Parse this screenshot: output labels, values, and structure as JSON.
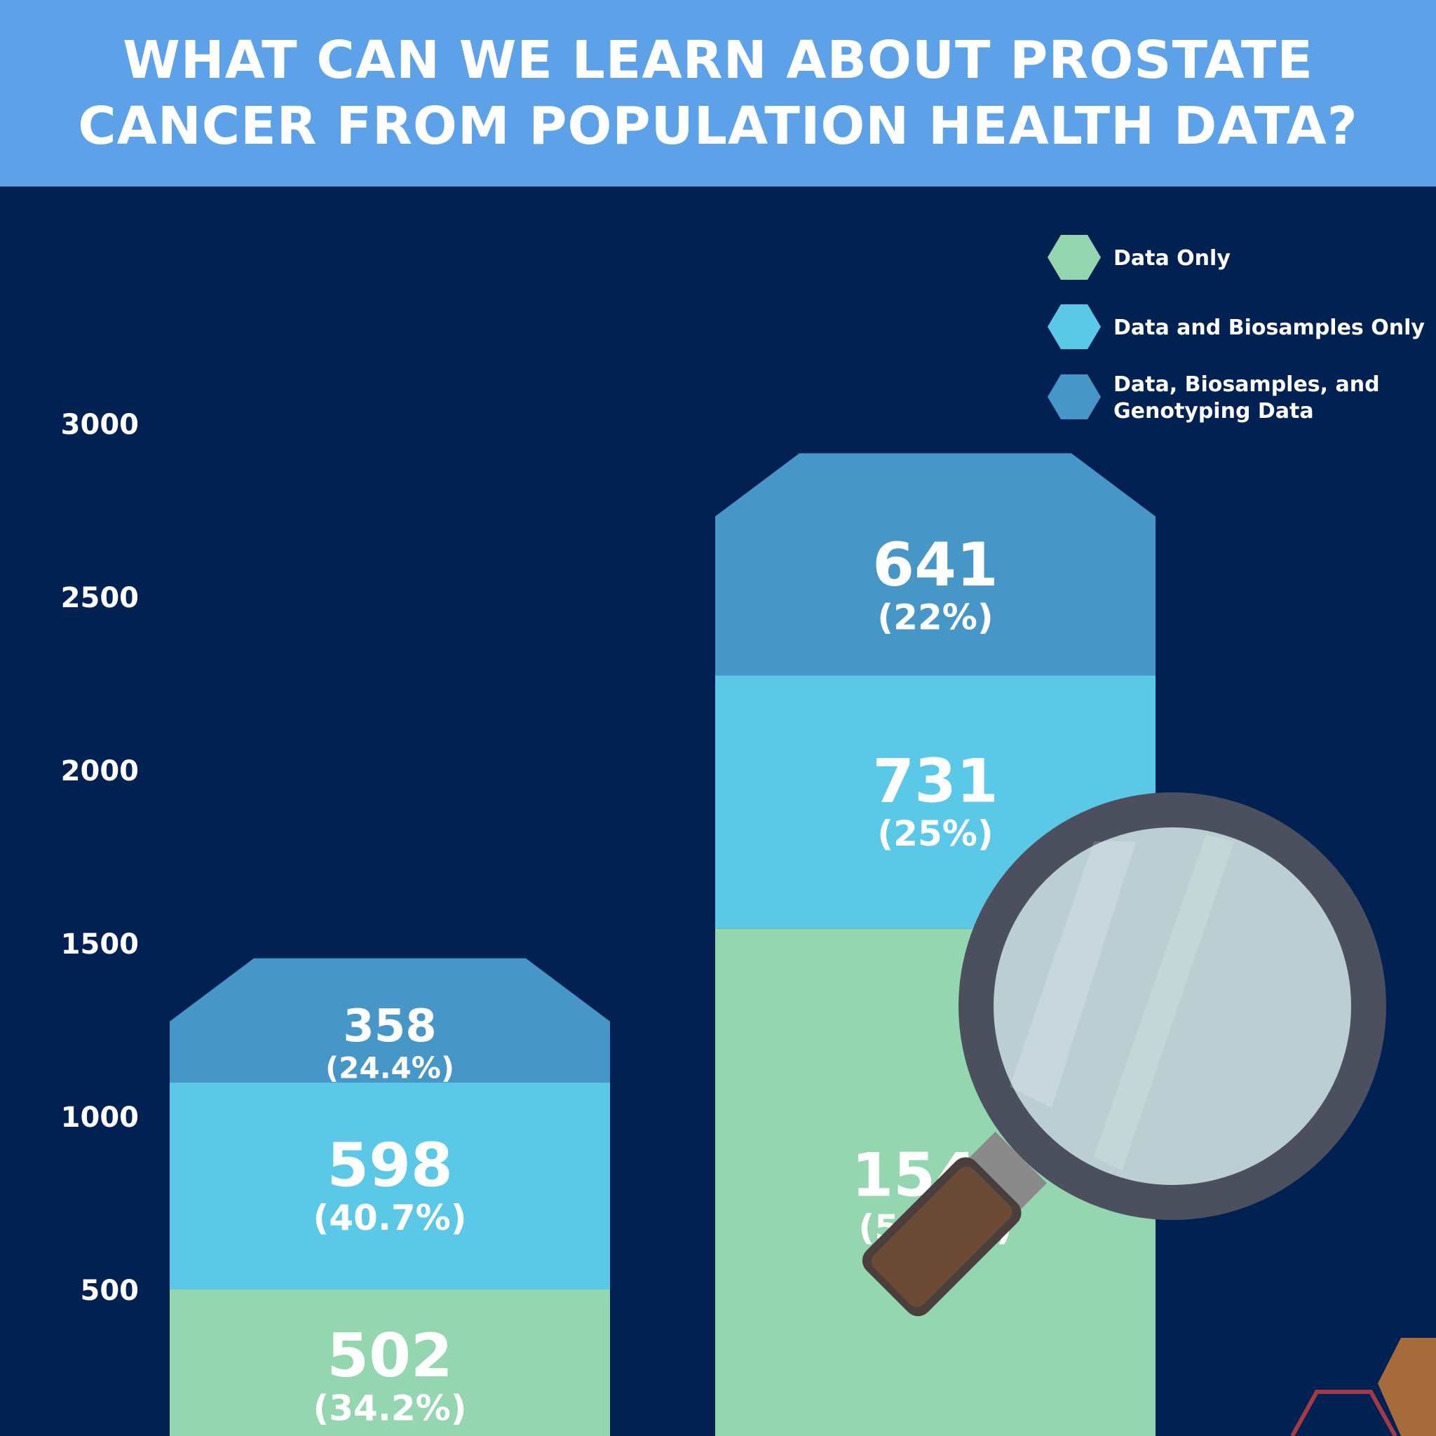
{
  "title": "WHAT CAN WE LEARN ABOUT PROSTATE CANCER FROM POPULATION HEALTH DATA?",
  "chart_data": {
    "type": "bar",
    "stacked": true,
    "title": "WHAT CAN WE LEARN ABOUT PROSTATE CANCER FROM POPULATION HEALTH DATA?",
    "categories": [
      "",
      ""
    ],
    "ylim": [
      0,
      3000
    ],
    "yticks": [
      500,
      1000,
      1500,
      2000,
      2500,
      3000
    ],
    "grid": false,
    "legend_position": "top-right",
    "series": [
      {
        "name": "Data Only",
        "color": "#93d6b0",
        "values": [
          502,
          1544
        ],
        "labels": [
          "(34.2%)",
          "(52.9%)"
        ]
      },
      {
        "name": "Data and Biosamples Only",
        "color": "#5bc8e8",
        "values": [
          598,
          731
        ],
        "labels": [
          "(40.7%)",
          "(25%)"
        ]
      },
      {
        "name": "Data, Biosamples, and Genotyping Data",
        "color": "#4796c8",
        "values": [
          358,
          641
        ],
        "labels": [
          "(24.4%)",
          "(22%)"
        ]
      }
    ]
  },
  "decor": {
    "icon": "magnifying-glass-icon",
    "background": "#012152",
    "header": "#5da2e9"
  }
}
